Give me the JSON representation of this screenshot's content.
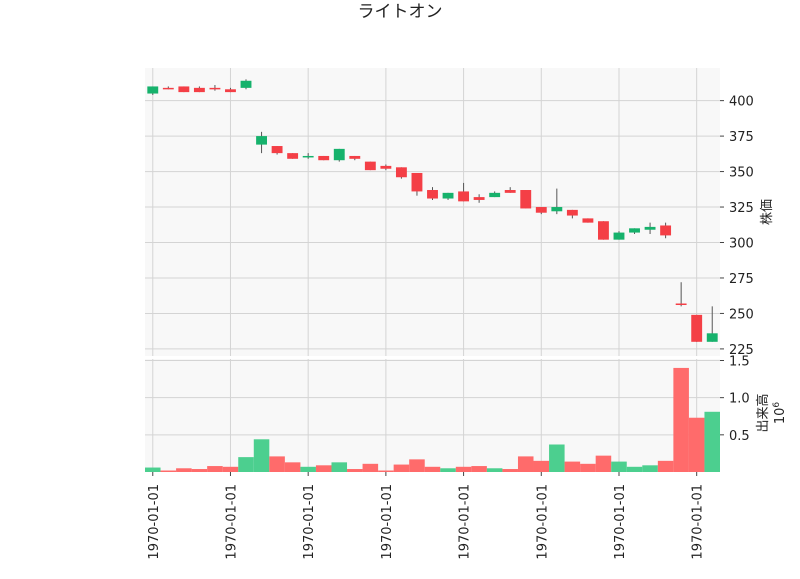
{
  "chart_data": {
    "type": "candlestick",
    "title": "ライトオン",
    "price_axis": {
      "label": "株価",
      "ticks": [
        225,
        250,
        275,
        300,
        325,
        350,
        375,
        400
      ],
      "ylim": [
        220,
        423
      ],
      "position": "right"
    },
    "volume_axis": {
      "label": "出来高",
      "multiplier": "10^6",
      "ticks": [
        0.5,
        1.0,
        1.5
      ],
      "tick_labels": [
        "0.5",
        "1.0",
        "1.5"
      ],
      "ylim": [
        0,
        1.52
      ],
      "position": "right"
    },
    "x_tick_labels": [
      "1970-01-01",
      "1970-01-01",
      "1970-01-01",
      "1970-01-01",
      "1970-01-01",
      "1970-01-01",
      "1970-01-01",
      "1970-01-01"
    ],
    "x_tick_indices": [
      0,
      5,
      10,
      15,
      20,
      25,
      30,
      35
    ],
    "grid": true,
    "up_color": "#16b26c",
    "down_color": "#f43f46",
    "vol_up_color": "#4ccf8f",
    "vol_down_color": "#ff6b6b",
    "candles": [
      {
        "o": 405,
        "h": 410,
        "l": 404,
        "c": 410,
        "v": 0.06
      },
      {
        "o": 409,
        "h": 410,
        "l": 408,
        "c": 408,
        "v": 0.02
      },
      {
        "o": 410,
        "h": 410,
        "l": 406,
        "c": 406,
        "v": 0.05
      },
      {
        "o": 409,
        "h": 410,
        "l": 406,
        "c": 406,
        "v": 0.04
      },
      {
        "o": 409,
        "h": 411,
        "l": 407,
        "c": 408,
        "v": 0.08
      },
      {
        "o": 408,
        "h": 409,
        "l": 406,
        "c": 406,
        "v": 0.07
      },
      {
        "o": 409,
        "h": 415,
        "l": 408,
        "c": 414,
        "v": 0.2
      },
      {
        "o": 369,
        "h": 378,
        "l": 363,
        "c": 375,
        "v": 0.44
      },
      {
        "o": 368,
        "h": 368,
        "l": 362,
        "c": 363,
        "v": 0.21
      },
      {
        "o": 363,
        "h": 363,
        "l": 359,
        "c": 359,
        "v": 0.13
      },
      {
        "o": 360,
        "h": 363,
        "l": 359,
        "c": 361,
        "v": 0.07
      },
      {
        "o": 361,
        "h": 361,
        "l": 358,
        "c": 358,
        "v": 0.09
      },
      {
        "o": 358,
        "h": 366,
        "l": 357,
        "c": 366,
        "v": 0.13
      },
      {
        "o": 361,
        "h": 361,
        "l": 358,
        "c": 359,
        "v": 0.04
      },
      {
        "o": 357,
        "h": 357,
        "l": 351,
        "c": 351,
        "v": 0.11
      },
      {
        "o": 354,
        "h": 355,
        "l": 351,
        "c": 352,
        "v": 0.02
      },
      {
        "o": 353,
        "h": 353,
        "l": 345,
        "c": 346,
        "v": 0.1
      },
      {
        "o": 349,
        "h": 349,
        "l": 333,
        "c": 336,
        "v": 0.17
      },
      {
        "o": 337,
        "h": 339,
        "l": 330,
        "c": 331,
        "v": 0.07
      },
      {
        "o": 331,
        "h": 335,
        "l": 330,
        "c": 335,
        "v": 0.05
      },
      {
        "o": 336,
        "h": 342,
        "l": 329,
        "c": 329,
        "v": 0.07
      },
      {
        "o": 332,
        "h": 334,
        "l": 328,
        "c": 330,
        "v": 0.08
      },
      {
        "o": 332,
        "h": 336,
        "l": 332,
        "c": 335,
        "v": 0.05
      },
      {
        "o": 337,
        "h": 339,
        "l": 335,
        "c": 335,
        "v": 0.04
      },
      {
        "o": 337,
        "h": 337,
        "l": 324,
        "c": 324,
        "v": 0.21
      },
      {
        "o": 325,
        "h": 325,
        "l": 320,
        "c": 321,
        "v": 0.15
      },
      {
        "o": 322,
        "h": 338,
        "l": 320,
        "c": 325,
        "v": 0.37
      },
      {
        "o": 323,
        "h": 323,
        "l": 317,
        "c": 319,
        "v": 0.14
      },
      {
        "o": 317,
        "h": 317,
        "l": 314,
        "c": 314,
        "v": 0.11
      },
      {
        "o": 315,
        "h": 315,
        "l": 302,
        "c": 302,
        "v": 0.22
      },
      {
        "o": 302,
        "h": 308,
        "l": 302,
        "c": 307,
        "v": 0.14
      },
      {
        "o": 307,
        "h": 310,
        "l": 306,
        "c": 310,
        "v": 0.07
      },
      {
        "o": 309,
        "h": 314,
        "l": 306,
        "c": 311,
        "v": 0.09
      },
      {
        "o": 312,
        "h": 314,
        "l": 303,
        "c": 305,
        "v": 0.15
      },
      {
        "o": 257,
        "h": 272,
        "l": 255,
        "c": 256,
        "v": 1.4
      },
      {
        "o": 249,
        "h": 249,
        "l": 230,
        "c": 230,
        "v": 0.73
      },
      {
        "o": 230,
        "h": 255,
        "l": 230,
        "c": 236,
        "v": 0.81
      }
    ]
  }
}
